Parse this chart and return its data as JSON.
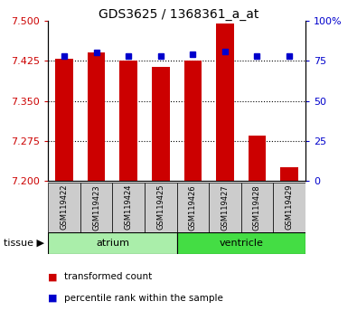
{
  "title": "GDS3625 / 1368361_a_at",
  "samples": [
    "GSM119422",
    "GSM119423",
    "GSM119424",
    "GSM119425",
    "GSM119426",
    "GSM119427",
    "GSM119428",
    "GSM119429"
  ],
  "transformed_counts": [
    7.428,
    7.44,
    7.425,
    7.413,
    7.425,
    7.495,
    7.285,
    7.225
  ],
  "percentile_ranks": [
    78,
    80,
    78,
    78,
    79,
    81,
    78,
    78
  ],
  "ylim_left": [
    7.2,
    7.5
  ],
  "ylim_right": [
    0,
    100
  ],
  "yticks_left": [
    7.2,
    7.275,
    7.35,
    7.425,
    7.5
  ],
  "yticks_right": [
    0,
    25,
    50,
    75,
    100
  ],
  "ytick_labels_right": [
    "0",
    "25",
    "50",
    "75",
    "100%"
  ],
  "tissue_groups": [
    {
      "label": "atrium",
      "n": 4,
      "color": "#aaeeaa"
    },
    {
      "label": "ventricle",
      "n": 4,
      "color": "#44dd44"
    }
  ],
  "bar_color": "#cc0000",
  "dot_color": "#0000cc",
  "bar_width": 0.55,
  "base_value": 7.2,
  "tick_label_color_left": "#cc0000",
  "tick_label_color_right": "#0000cc",
  "sample_box_color": "#cccccc",
  "title_fontsize": 10,
  "tick_fontsize": 8,
  "sample_fontsize": 6,
  "tissue_fontsize": 8,
  "legend_fontsize": 7.5
}
